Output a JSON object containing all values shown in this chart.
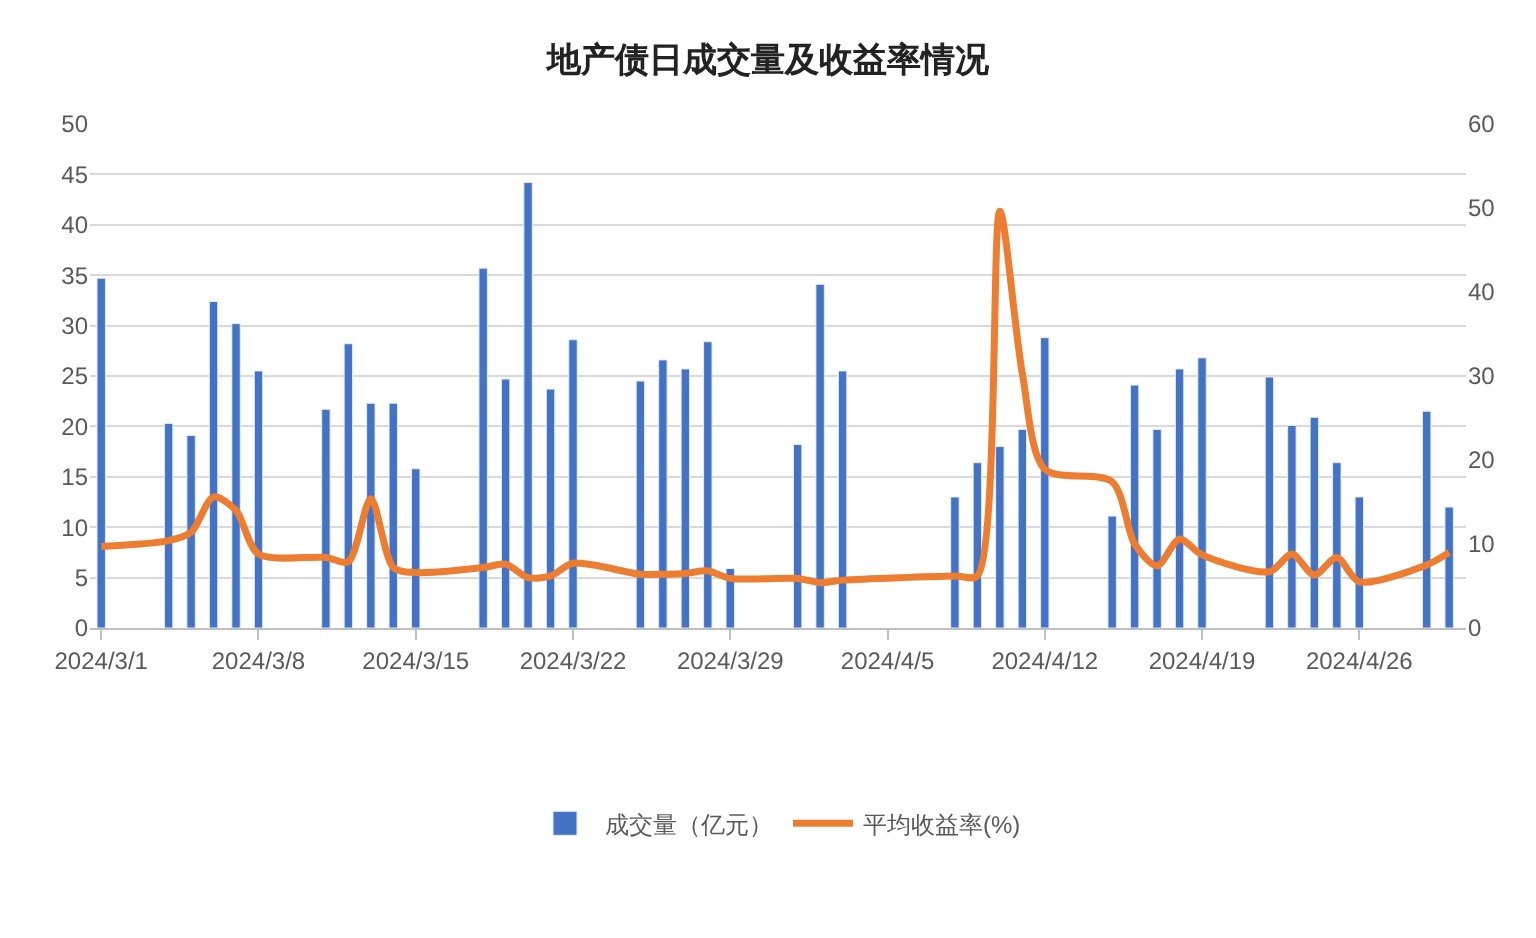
{
  "chart_data": {
    "type": "bar",
    "title": "地产债日成交量及收益率情况",
    "x": [
      "2024-03-01",
      "2024-03-04",
      "2024-03-05",
      "2024-03-06",
      "2024-03-07",
      "2024-03-08",
      "2024-03-11",
      "2024-03-12",
      "2024-03-13",
      "2024-03-14",
      "2024-03-15",
      "2024-03-18",
      "2024-03-19",
      "2024-03-20",
      "2024-03-21",
      "2024-03-22",
      "2024-03-25",
      "2024-03-26",
      "2024-03-27",
      "2024-03-28",
      "2024-03-29",
      "2024-04-01",
      "2024-04-02",
      "2024-04-03",
      "2024-04-08",
      "2024-04-09",
      "2024-04-10",
      "2024-04-11",
      "2024-04-12",
      "2024-04-15",
      "2024-04-16",
      "2024-04-17",
      "2024-04-18",
      "2024-04-19",
      "2024-04-22",
      "2024-04-23",
      "2024-04-24",
      "2024-04-25",
      "2024-04-26",
      "2024-04-29",
      "2024-04-30"
    ],
    "series": [
      {
        "name": "成交量（亿元）",
        "color": "#4472c4",
        "values": [
          34.7,
          20.3,
          19.1,
          32.4,
          30.2,
          25.5,
          21.7,
          28.2,
          22.3,
          22.3,
          15.8,
          35.7,
          24.7,
          44.2,
          23.7,
          28.6,
          24.5,
          26.6,
          25.7,
          28.4,
          5.9,
          18.2,
          34.1,
          25.5,
          13.0,
          16.4,
          18.0,
          19.7,
          28.8,
          11.1,
          24.1,
          19.7,
          25.7,
          26.8,
          24.9,
          20.1,
          20.9,
          16.4,
          13.0,
          21.5,
          12.0
        ]
      },
      {
        "name": "平均收益率(%)",
        "type": "line",
        "axis": "y2",
        "color": "#ed7d31",
        "values": [
          9.7,
          10.4,
          11.4,
          15.6,
          14.0,
          8.8,
          8.4,
          7.9,
          15.4,
          7.2,
          6.6,
          7.2,
          7.6,
          6.0,
          6.2,
          7.7,
          6.4,
          6.4,
          6.5,
          6.8,
          5.9,
          5.9,
          5.4,
          5.7,
          6.2,
          6.2,
          49.6,
          30.3,
          18.9,
          17.4,
          10.0,
          7.4,
          10.6,
          8.7,
          6.7,
          8.8,
          6.3,
          8.4,
          5.5,
          7.5,
          9.0
        ]
      }
    ],
    "xlim": [
      "2024-02-29T12:00",
      "2024-04-30T18:00"
    ],
    "xticks": [
      {
        "value": "2024-03-01",
        "label": "2024/3/1"
      },
      {
        "value": "2024-03-08",
        "label": "2024/3/8"
      },
      {
        "value": "2024-03-15",
        "label": "2024/3/15"
      },
      {
        "value": "2024-03-22",
        "label": "2024/3/22"
      },
      {
        "value": "2024-03-29",
        "label": "2024/3/29"
      },
      {
        "value": "2024-04-05",
        "label": "2024/4/5"
      },
      {
        "value": "2024-04-12",
        "label": "2024/4/12"
      },
      {
        "value": "2024-04-19",
        "label": "2024/4/19"
      },
      {
        "value": "2024-04-26",
        "label": "2024/4/26"
      }
    ],
    "ylim": [
      0,
      50
    ],
    "yticks": [
      0,
      5,
      10,
      15,
      20,
      25,
      30,
      35,
      40,
      45,
      50
    ],
    "y2lim": [
      0,
      60
    ],
    "y2ticks": [
      0,
      10,
      20,
      30,
      40,
      50,
      60
    ],
    "grid": "y",
    "legend": "bottom",
    "marker": "none",
    "line_style": "solid"
  }
}
